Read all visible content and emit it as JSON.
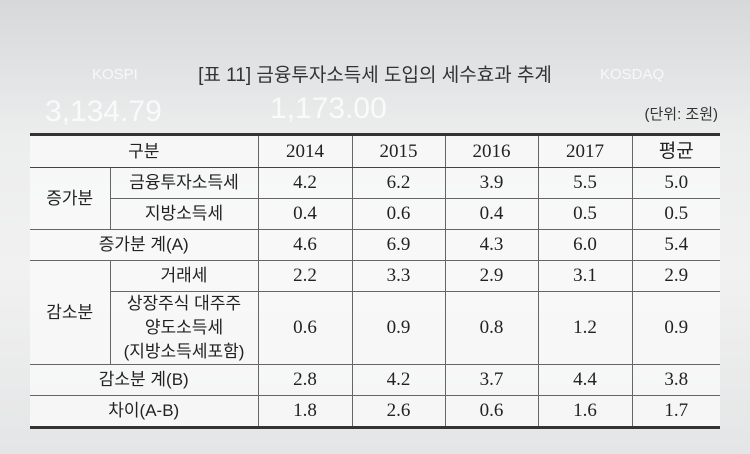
{
  "background": {
    "labels": [
      "KOSPI",
      "3,134.79",
      "1,173.00",
      "KOSDAQ"
    ]
  },
  "title": "[표 11] 금융투자소득세 도입의 세수효과 추계",
  "unit": "(단위: 조원)",
  "table": {
    "header": [
      "구분",
      "2014",
      "2015",
      "2016",
      "2017",
      "평균"
    ],
    "rows": [
      {
        "group": "증가분",
        "rows": [
          {
            "label": [
              "금융투자소득세"
            ],
            "values": [
              "4.2",
              "6.2",
              "3.9",
              "5.5",
              "5.0"
            ]
          },
          {
            "label": [
              "지방소득세"
            ],
            "values": [
              "0.4",
              "0.6",
              "0.4",
              "0.5",
              "0.5"
            ]
          }
        ]
      },
      {
        "label": [
          "증가분 계(A)"
        ],
        "values": [
          "4.6",
          "6.9",
          "4.3",
          "6.0",
          "5.4"
        ]
      },
      {
        "group": "감소분",
        "rows": [
          {
            "label": [
              "거래세"
            ],
            "values": [
              "2.2",
              "3.3",
              "2.9",
              "3.1",
              "2.9"
            ]
          },
          {
            "label": [
              "상장주식 대주주",
              "양도소득세",
              "(지방소득세포함)"
            ],
            "values": [
              "0.6",
              "0.9",
              "0.8",
              "1.2",
              "0.9"
            ]
          }
        ]
      },
      {
        "label": [
          "감소분 계(B)"
        ],
        "values": [
          "2.8",
          "4.2",
          "3.7",
          "4.4",
          "3.8"
        ]
      },
      {
        "label": [
          "차이(A-B)"
        ],
        "values": [
          "1.8",
          "2.6",
          "0.6",
          "1.6",
          "1.7"
        ]
      }
    ]
  }
}
